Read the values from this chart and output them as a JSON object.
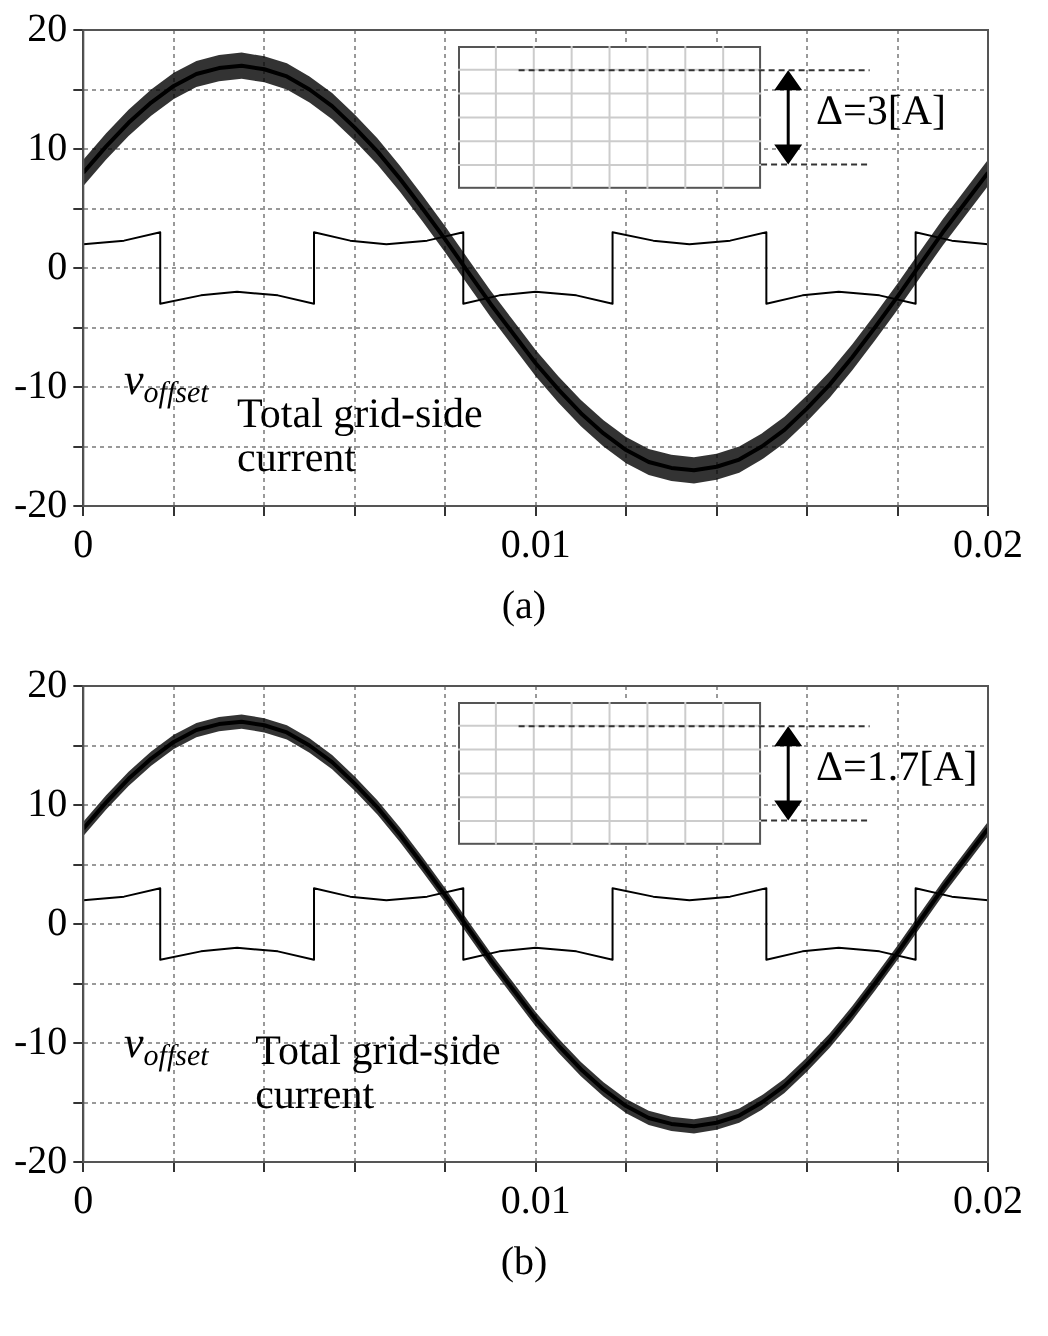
{
  "chart_data": [
    {
      "type": "line",
      "xlim": [
        0,
        0.02
      ],
      "ylim": [
        -20,
        20
      ],
      "xticks": [
        0,
        {
          "value": 0.002,
          "label": null
        },
        {
          "value": 0.004,
          "label": null
        },
        {
          "value": 0.006,
          "label": null
        },
        {
          "value": 0.008,
          "label": null
        },
        0.01,
        {
          "value": 0.012,
          "label": null
        },
        {
          "value": 0.014,
          "label": null
        },
        {
          "value": 0.016,
          "label": null
        },
        {
          "value": 0.018,
          "label": null
        },
        0.02
      ],
      "yticks": [
        -20,
        {
          "value": -15,
          "label": null
        },
        -10,
        {
          "value": -5,
          "label": null
        },
        0,
        {
          "value": 5,
          "label": null
        },
        10,
        {
          "value": 15,
          "label": null
        },
        20
      ],
      "grid": true,
      "x": [
        0,
        0.0005,
        0.001,
        0.0015,
        0.002,
        0.0025,
        0.003,
        0.0035,
        0.004,
        0.0045,
        0.005,
        0.0055,
        0.006,
        0.0065,
        0.007,
        0.0075,
        0.008,
        0.0085,
        0.009,
        0.0095,
        0.01,
        0.0105,
        0.011,
        0.0115,
        0.012,
        0.0125,
        0.013,
        0.0135,
        0.014,
        0.0145,
        0.015,
        0.0155,
        0.016,
        0.0165,
        0.017,
        0.0175,
        0.018,
        0.0185,
        0.019,
        0.0195,
        0.02
      ],
      "series": [
        {
          "color": "#000000",
          "values": [
            8.0,
            10.2,
            12.2,
            13.9,
            15.3,
            16.3,
            16.8,
            17.0,
            16.7,
            16.1,
            15.0,
            13.6,
            11.8,
            9.8,
            7.5,
            5.0,
            2.4,
            -0.3,
            -3.0,
            -5.5,
            -8.0,
            -10.2,
            -12.2,
            -13.9,
            -15.3,
            -16.3,
            -16.8,
            -17.0,
            -16.7,
            -16.1,
            -15.0,
            -13.6,
            -11.8,
            -9.8,
            -7.5,
            -5.0,
            -2.4,
            0.3,
            3.0,
            5.5,
            8.0
          ],
          "lower": [
            6.9,
            9.1,
            11.1,
            12.8,
            14.2,
            15.2,
            15.7,
            15.9,
            15.6,
            15.0,
            13.9,
            12.5,
            10.7,
            8.7,
            6.4,
            3.9,
            1.3,
            -1.4,
            -4.1,
            -6.6,
            -9.1,
            -11.3,
            -13.3,
            -15.0,
            -16.4,
            -17.4,
            -17.9,
            -18.1,
            -17.8,
            -17.2,
            -16.1,
            -14.7,
            -12.9,
            -10.9,
            -8.6,
            -6.1,
            -3.5,
            -0.8,
            1.9,
            4.4,
            6.9
          ],
          "upper": [
            9.1,
            11.3,
            13.3,
            15.0,
            16.4,
            17.4,
            17.9,
            18.1,
            17.8,
            17.2,
            16.1,
            14.7,
            12.9,
            10.9,
            8.6,
            6.1,
            3.5,
            0.8,
            -1.9,
            -4.4,
            -6.9,
            -9.1,
            -11.1,
            -12.8,
            -14.2,
            -15.2,
            -15.7,
            -15.9,
            -15.6,
            -15.0,
            -13.9,
            -12.5,
            -10.7,
            -8.7,
            -6.4,
            -3.9,
            -1.3,
            1.4,
            4.1,
            6.6,
            9.1
          ]
        },
        {
          "color": "#000000",
          "x": [
            0,
            0.0009,
            0.0017,
            0.0017,
            0.0026,
            0.0034,
            0.0043,
            0.0051,
            0.0051,
            0.0059,
            0.0067,
            0.0076,
            0.0084,
            0.0084,
            0.0092,
            0.01,
            0.0109,
            0.0117,
            0.0117,
            0.0126,
            0.0134,
            0.0143,
            0.0151,
            0.0151,
            0.0159,
            0.0167,
            0.0176,
            0.0184,
            0.0184,
            0.0192,
            0.02
          ],
          "values": [
            2.0,
            2.3,
            3.0,
            -3.0,
            -2.3,
            -2.0,
            -2.3,
            -3.0,
            3.0,
            2.3,
            2.0,
            2.3,
            3.0,
            -3.0,
            -2.3,
            -2.0,
            -2.3,
            -3.0,
            3.0,
            2.3,
            2.0,
            2.3,
            3.0,
            -3.0,
            -2.3,
            -2.0,
            -2.3,
            -3.0,
            3.0,
            2.3,
            2.0
          ]
        }
      ],
      "annotations": [
        "Δ=3[A]",
        "v$_{offset}$",
        "Total grid-side current",
        "(a)"
      ]
    },
    {
      "type": "line",
      "xlim": [
        0,
        0.02
      ],
      "ylim": [
        -20,
        20
      ],
      "xticks": [
        0,
        {
          "value": 0.002,
          "label": null
        },
        {
          "value": 0.004,
          "label": null
        },
        {
          "value": 0.006,
          "label": null
        },
        {
          "value": 0.008,
          "label": null
        },
        0.01,
        {
          "value": 0.012,
          "label": null
        },
        {
          "value": 0.014,
          "label": null
        },
        {
          "value": 0.016,
          "label": null
        },
        {
          "value": 0.018,
          "label": null
        },
        0.02
      ],
      "yticks": [
        -20,
        {
          "value": -15,
          "label": null
        },
        -10,
        {
          "value": -5,
          "label": null
        },
        0,
        {
          "value": 5,
          "label": null
        },
        10,
        {
          "value": 15,
          "label": null
        },
        20
      ],
      "grid": true,
      "x": [
        0,
        0.0005,
        0.001,
        0.0015,
        0.002,
        0.0025,
        0.003,
        0.0035,
        0.004,
        0.0045,
        0.005,
        0.0055,
        0.006,
        0.0065,
        0.007,
        0.0075,
        0.008,
        0.0085,
        0.009,
        0.0095,
        0.01,
        0.0105,
        0.011,
        0.0115,
        0.012,
        0.0125,
        0.013,
        0.0135,
        0.014,
        0.0145,
        0.015,
        0.0155,
        0.016,
        0.0165,
        0.017,
        0.0175,
        0.018,
        0.0185,
        0.019,
        0.0195,
        0.02
      ],
      "series": [
        {
          "color": "#000000",
          "values": [
            8.0,
            10.2,
            12.2,
            13.9,
            15.3,
            16.3,
            16.8,
            17.0,
            16.7,
            16.1,
            15.0,
            13.6,
            11.8,
            9.8,
            7.5,
            5.0,
            2.4,
            -0.3,
            -3.0,
            -5.5,
            -8.0,
            -10.2,
            -12.2,
            -13.9,
            -15.3,
            -16.3,
            -16.8,
            -17.0,
            -16.7,
            -16.1,
            -15.0,
            -13.6,
            -11.8,
            -9.8,
            -7.5,
            -5.0,
            -2.4,
            0.3,
            3.0,
            5.5,
            8.0
          ],
          "lower": [
            7.4,
            9.6,
            11.6,
            13.3,
            14.7,
            15.7,
            16.2,
            16.4,
            16.1,
            15.5,
            14.4,
            13.0,
            11.2,
            9.2,
            6.9,
            4.4,
            1.8,
            -0.9,
            -3.6,
            -6.1,
            -8.6,
            -10.8,
            -12.8,
            -14.5,
            -15.9,
            -16.9,
            -17.4,
            -17.6,
            -17.3,
            -16.7,
            -15.6,
            -14.2,
            -12.4,
            -10.4,
            -8.1,
            -5.6,
            -3.0,
            -0.3,
            2.4,
            4.9,
            7.4
          ],
          "upper": [
            8.6,
            10.8,
            12.8,
            14.5,
            15.9,
            16.9,
            17.4,
            17.6,
            17.3,
            16.7,
            15.6,
            14.2,
            12.4,
            10.4,
            8.1,
            5.6,
            3.0,
            0.3,
            -2.4,
            -4.9,
            -7.4,
            -9.6,
            -11.6,
            -13.3,
            -14.7,
            -15.7,
            -16.2,
            -16.4,
            -16.1,
            -15.5,
            -14.4,
            -13.0,
            -11.2,
            -9.2,
            -6.9,
            -4.4,
            -1.8,
            0.9,
            3.6,
            6.1,
            8.6
          ]
        },
        {
          "color": "#000000",
          "x": [
            0,
            0.0009,
            0.0017,
            0.0017,
            0.0026,
            0.0034,
            0.0043,
            0.0051,
            0.0051,
            0.0059,
            0.0067,
            0.0076,
            0.0084,
            0.0084,
            0.0092,
            0.01,
            0.0109,
            0.0117,
            0.0117,
            0.0126,
            0.0134,
            0.0143,
            0.0151,
            0.0151,
            0.0159,
            0.0167,
            0.0176,
            0.0184,
            0.0184,
            0.0192,
            0.02
          ],
          "values": [
            2.0,
            2.3,
            3.0,
            -3.0,
            -2.3,
            -2.0,
            -2.3,
            -3.0,
            3.0,
            2.3,
            2.0,
            2.3,
            3.0,
            -3.0,
            -2.3,
            -2.0,
            -2.3,
            -3.0,
            3.0,
            2.3,
            2.0,
            2.3,
            3.0,
            -3.0,
            -2.3,
            -2.0,
            -2.3,
            -3.0,
            3.0,
            2.3,
            2.0
          ]
        }
      ],
      "annotations": [
        "Δ=1.7[A]",
        "v$_{offset}$",
        "Total grid-side current",
        "(b)"
      ]
    }
  ]
}
